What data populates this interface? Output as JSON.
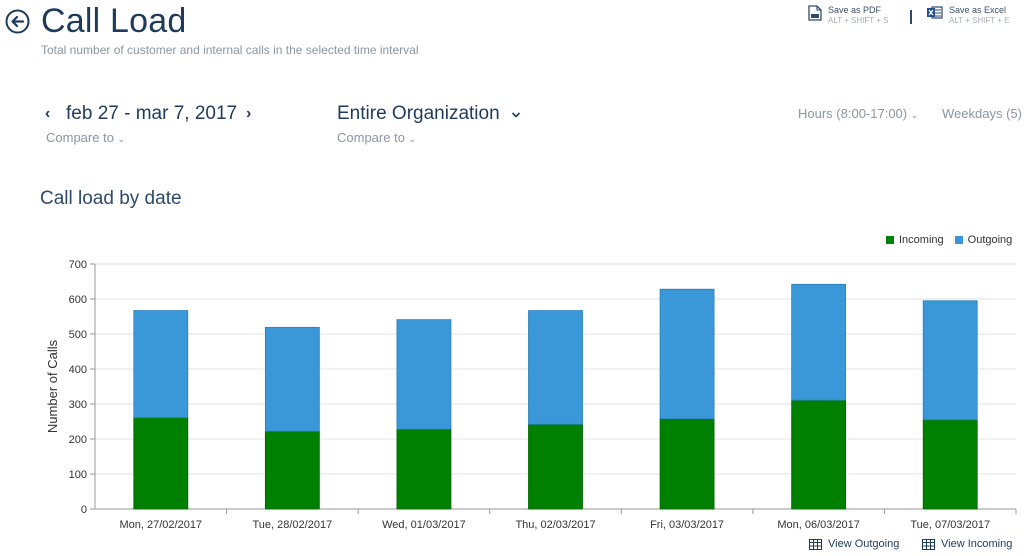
{
  "header": {
    "title": "Call Load",
    "subtitle": "Total number of customer and internal calls in the selected time interval"
  },
  "exports": {
    "pdf_label": "Save as PDF",
    "pdf_shortcut": "ALT + SHIFT + S",
    "excel_label": "Save as Excel",
    "excel_shortcut": "ALT + SHIFT + E"
  },
  "filters": {
    "date_range": "feb 27 - mar 7, 2017",
    "date_compare": "Compare to",
    "organization": "Entire Organization",
    "org_compare": "Compare to",
    "hours": "Hours (8:00-17:00)",
    "weekdays": "Weekdays (5)"
  },
  "section_title": "Call load by date",
  "legend": {
    "incoming": "Incoming",
    "outgoing": "Outgoing"
  },
  "links": {
    "view_outgoing": "View Outgoing",
    "view_incoming": "View Incoming"
  },
  "colors": {
    "incoming": "#008000",
    "outgoing": "#3a98d9"
  },
  "chart_data": {
    "type": "bar",
    "stacked": true,
    "ylabel": "Number of Calls",
    "xlabel": "",
    "ylim": [
      0,
      700
    ],
    "yticks": [
      0,
      100,
      200,
      300,
      400,
      500,
      600,
      700
    ],
    "grid": true,
    "legend_position": "top-right",
    "categories": [
      "Mon, 27/02/2017",
      "Tue, 28/02/2017",
      "Wed, 01/03/2017",
      "Thu, 02/03/2017",
      "Fri, 03/03/2017",
      "Mon, 06/03/2017",
      "Tue, 07/03/2017"
    ],
    "series": [
      {
        "name": "Incoming",
        "values": [
          261,
          222,
          228,
          242,
          258,
          311,
          255
        ]
      },
      {
        "name": "Outgoing",
        "values": [
          306,
          297,
          313,
          325,
          370,
          331,
          340
        ]
      }
    ]
  }
}
